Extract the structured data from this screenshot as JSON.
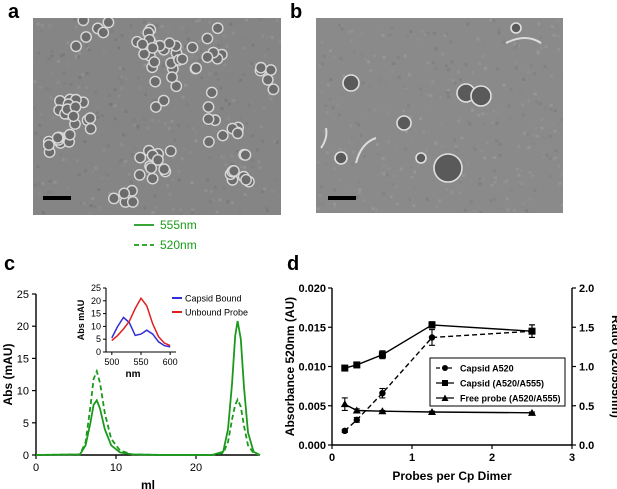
{
  "panels": {
    "a": "a",
    "b": "b",
    "c": "c",
    "d": "d"
  },
  "colors": {
    "green": "#1a9a1a",
    "blue": "#2f2fd6",
    "red": "#e02020",
    "black": "#000000"
  },
  "chart_data": [
    {
      "type": "line",
      "panel": "c",
      "xlabel": "ml",
      "ylabel": "Abs (mAU)",
      "xlim": [
        0,
        28
      ],
      "ylim": [
        0,
        25
      ],
      "xticks": [
        0,
        10,
        20
      ],
      "yticks": [
        0,
        5,
        10,
        15,
        20,
        25
      ],
      "legend": "center-right",
      "series": [
        {
          "name": "555nm",
          "style": "solid",
          "color": "#1a9a1a",
          "x": [
            0,
            5.5,
            6.2,
            6.8,
            7.2,
            7.6,
            8.0,
            8.6,
            9.4,
            10.5,
            12,
            16,
            22,
            23.4,
            24.0,
            24.5,
            24.9,
            25.2,
            25.6,
            26.0,
            26.5,
            27.2,
            28
          ],
          "y": [
            0,
            0.1,
            1.5,
            5.0,
            7.8,
            8.5,
            7.2,
            4.0,
            1.5,
            0.4,
            0.1,
            0,
            0,
            0.5,
            4.0,
            11.0,
            18.5,
            20.8,
            18.0,
            10.5,
            3.5,
            0.5,
            0
          ]
        },
        {
          "name": "520nm",
          "style": "dashed",
          "color": "#1a9a1a",
          "x": [
            0,
            5.5,
            6.2,
            6.8,
            7.2,
            7.6,
            8.0,
            8.6,
            9.4,
            10.5,
            12,
            16,
            22,
            23.4,
            24.0,
            24.5,
            24.9,
            25.2,
            25.6,
            26.0,
            26.5,
            27.2,
            28
          ],
          "y": [
            0,
            0.1,
            2.0,
            7.5,
            11.8,
            13.0,
            11.2,
            6.5,
            2.5,
            0.7,
            0.1,
            0,
            0,
            0.3,
            2.0,
            5.5,
            7.8,
            8.6,
            7.5,
            4.5,
            1.5,
            0.3,
            0
          ]
        }
      ]
    },
    {
      "type": "line",
      "panel": "c-inset",
      "xlabel": "nm",
      "ylabel": "Abs mAU",
      "xlim": [
        490,
        610
      ],
      "ylim": [
        0,
        25
      ],
      "xticks": [
        500,
        550,
        600
      ],
      "yticks": [
        0,
        5,
        10,
        15,
        20,
        25
      ],
      "legend": "right",
      "series": [
        {
          "name": "Capsid Bound",
          "color": "#2f2fd6",
          "x": [
            500,
            510,
            520,
            530,
            540,
            550,
            560,
            570,
            580,
            590,
            600
          ],
          "y": [
            5.5,
            10,
            13.5,
            11.5,
            6.5,
            7,
            8.5,
            7,
            4,
            2.5,
            2
          ]
        },
        {
          "name": "Unbound  Probe",
          "color": "#e02020",
          "x": [
            500,
            510,
            520,
            530,
            540,
            550,
            560,
            570,
            580,
            590,
            600
          ],
          "y": [
            4.5,
            6.5,
            9,
            12,
            17,
            21,
            18,
            11,
            6,
            3.5,
            2.5
          ]
        }
      ]
    },
    {
      "type": "scatter",
      "panel": "d",
      "xlabel": "Probes per  Cp  Dimer",
      "ylabel": "Absorbance 520nm (AU)",
      "y2label": "Ratio  (520/555nm)",
      "xlim": [
        0,
        3
      ],
      "ylim": [
        0,
        0.02
      ],
      "y2lim": [
        0,
        2.0
      ],
      "xticks": [
        "0",
        "1",
        "2",
        "3"
      ],
      "yticks": [
        "0.000",
        "0.005",
        "0.010",
        "0.015",
        "0.020"
      ],
      "y2ticks": [
        "0.0",
        "0.5",
        "1.0",
        "1.5",
        "2.0"
      ],
      "legend": "bottom-right",
      "series": [
        {
          "name": "Capsid  A520",
          "marker": "circle",
          "line": "dashed",
          "axis": "left",
          "x": [
            0.16,
            0.31,
            0.63,
            1.25,
            2.5
          ],
          "y": [
            0.0018,
            0.0032,
            0.0066,
            0.0137,
            0.0145
          ],
          "err": [
            0.0002,
            0.0003,
            0.0006,
            0.001,
            0.0008
          ]
        },
        {
          "name": "Capsid (A520/A555)",
          "marker": "square",
          "line": "solid",
          "axis": "right",
          "x": [
            0.16,
            0.31,
            0.63,
            1.25,
            2.5
          ],
          "y": [
            0.98,
            1.02,
            1.15,
            1.53,
            1.45
          ],
          "err": [
            0.02,
            0.03,
            0.05,
            0.04,
            0.08
          ]
        },
        {
          "name": "Free probe (A520/A555)",
          "marker": "triangle",
          "line": "solid",
          "axis": "right",
          "x": [
            0.16,
            0.31,
            0.63,
            1.25,
            2.5
          ],
          "y": [
            0.52,
            0.44,
            0.43,
            0.42,
            0.41
          ],
          "err": [
            0.08,
            0.02,
            0.01,
            0.01,
            0.01
          ]
        }
      ]
    }
  ]
}
